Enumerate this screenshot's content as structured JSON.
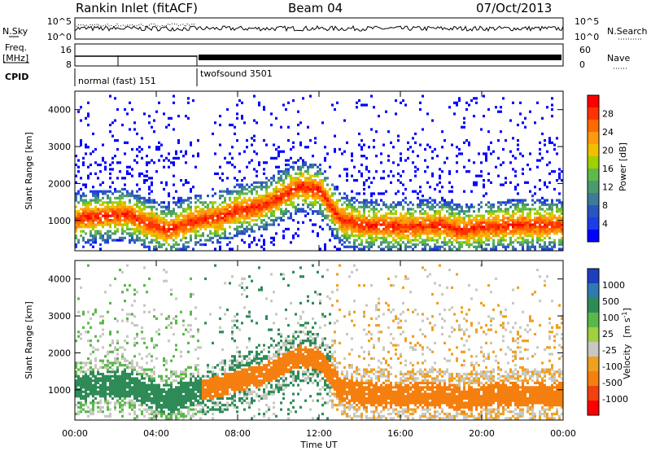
{
  "header": {
    "station": "Rankin Inlet (fitACF)",
    "beam": "Beam 04",
    "date": "07/Oct/2013"
  },
  "top_panel": {
    "left_label": "N.Sky",
    "right_label": "N.Search",
    "left_ticks": [
      "10^5",
      "10^0"
    ],
    "right_ticks": [
      "10^5",
      "10^0"
    ]
  },
  "freq_panel": {
    "left_label_1": "Freq.",
    "left_label_2": "[MHz]",
    "right_label": "Nave",
    "left_ticks": [
      "16",
      "8"
    ],
    "right_ticks": [
      "60",
      "0"
    ]
  },
  "cpid": {
    "label": "CPID",
    "modes": [
      {
        "name": "normal (fast) 151",
        "start_hr": 0,
        "end_hr": 6
      },
      {
        "name": "twofsound 3501",
        "start_hr": 6,
        "end_hr": 24
      }
    ]
  },
  "x_axis": {
    "label": "Time UT",
    "ticks": [
      "00:00",
      "04:00",
      "08:00",
      "12:00",
      "16:00",
      "20:00",
      "00:00"
    ],
    "range_hours": [
      0,
      24
    ]
  },
  "chart_data": [
    {
      "type": "heatmap",
      "name": "power",
      "ylabel": "Slant Range [km]",
      "yticks": [
        1000,
        2000,
        3000,
        4000
      ],
      "ylim": [
        180,
        4500
      ],
      "xlim": [
        0,
        24
      ],
      "colorbar": {
        "label": "Power [dB]",
        "ticks": [
          "28",
          "24",
          "20",
          "16",
          "12",
          "8",
          "4"
        ],
        "colors": [
          "#ff0000",
          "#ff3300",
          "#ff6a00",
          "#ff9a10",
          "#f0c000",
          "#a0d000",
          "#5fb94a",
          "#4a9a70",
          "#3e7a9a",
          "#2a55c0",
          "#1b3ee8",
          "#0000ff"
        ]
      },
      "main_band": {
        "hours": [
          0,
          0.5,
          1.5,
          2.5,
          3.5,
          4.5,
          5.5,
          6,
          7,
          8,
          9,
          10,
          11,
          12,
          13,
          14,
          16,
          18,
          19,
          20,
          22,
          24
        ],
        "range_km": [
          1000,
          1050,
          1100,
          1150,
          900,
          700,
          900,
          1000,
          1050,
          1250,
          1350,
          1600,
          1900,
          1800,
          1000,
          850,
          800,
          850,
          700,
          800,
          850,
          850
        ]
      }
    },
    {
      "type": "heatmap",
      "name": "velocity",
      "ylabel": "Slant Range [km]",
      "yticks": [
        1000,
        2000,
        3000,
        4000
      ],
      "ylim": [
        180,
        4500
      ],
      "xlim": [
        0,
        24
      ],
      "colorbar": {
        "label": "Velocity",
        "units": "[m s",
        "units_sup": "-1",
        "units_end": "]",
        "ticks": [
          "1000",
          "500",
          "100",
          "25",
          "-25",
          "-100",
          "-500",
          "-1000"
        ],
        "colors": [
          "#1c3fc0",
          "#2f7ab0",
          "#2e8b57",
          "#5ab84a",
          "#a0d040",
          "#c8c8c0",
          "#f0a020",
          "#f57f0f",
          "#f24010",
          "#ff0000"
        ]
      }
    }
  ]
}
